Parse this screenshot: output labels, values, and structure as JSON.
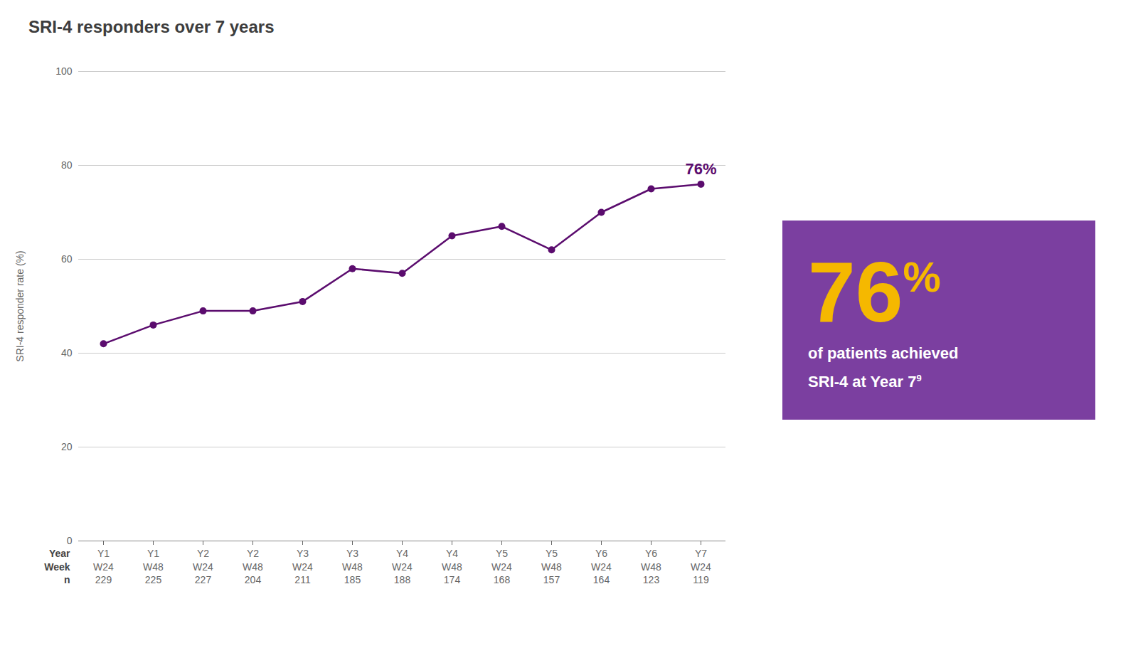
{
  "chart_data": {
    "type": "line",
    "title": "SRI-4 responders over 7 years",
    "ylabel": "SRI-4 responder rate (%)",
    "x_rows": [
      {
        "label": "Year",
        "values": [
          "Y1",
          "Y1",
          "Y2",
          "Y2",
          "Y3",
          "Y3",
          "Y4",
          "Y4",
          "Y5",
          "Y5",
          "Y6",
          "Y6",
          "Y7"
        ]
      },
      {
        "label": "Week",
        "values": [
          "W24",
          "W48",
          "W24",
          "W48",
          "W24",
          "W48",
          "W24",
          "W48",
          "W24",
          "W48",
          "W24",
          "W48",
          "W24"
        ]
      },
      {
        "label": "n",
        "values": [
          229,
          225,
          227,
          204,
          211,
          185,
          188,
          174,
          168,
          157,
          164,
          123,
          119
        ]
      }
    ],
    "values": [
      42,
      46,
      49,
      49,
      51,
      58,
      57,
      65,
      67,
      62,
      70,
      75,
      76
    ],
    "color": "#5b0c6e",
    "marker": "circle",
    "ylim": [
      0,
      100
    ],
    "yticks": [
      0,
      20,
      40,
      60,
      80,
      100
    ],
    "grid": true,
    "annotation": {
      "value": 76,
      "suffix": "%"
    },
    "callout": {
      "value": 76,
      "suffix": "%",
      "lines": [
        "of patients achieved",
        "SRI-4 at Year 7"
      ],
      "superscript": "9",
      "color": "#7b3fa0",
      "value_color": "#f5b800",
      "text_color": "#ffffff"
    }
  }
}
